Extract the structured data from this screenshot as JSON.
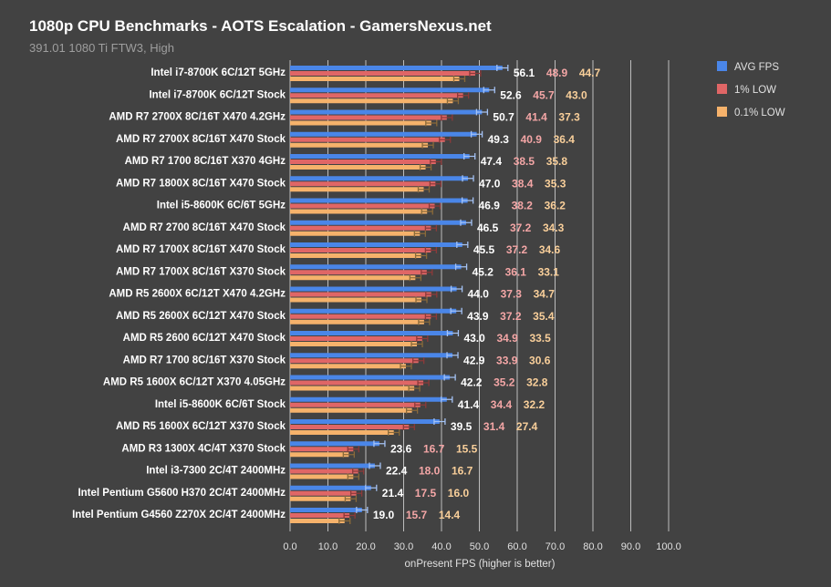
{
  "chart_data": {
    "type": "bar",
    "orientation": "horizontal",
    "title": "1080p CPU Benchmarks - AOTS Escalation - GamersNexus.net",
    "subtitle": "391.01 1080 Ti FTW3, High",
    "xlabel": "onPresent FPS (higher is better)",
    "xlim": [
      0,
      100
    ],
    "xticks": [
      "0.0",
      "10.0",
      "20.0",
      "30.0",
      "40.0",
      "50.0",
      "60.0",
      "70.0",
      "80.0",
      "90.0",
      "100.0"
    ],
    "grid": true,
    "legend_position": "top-right",
    "categories": [
      "Intel i7-8700K 6C/12T 5GHz",
      "Intel i7-8700K 6C/12T Stock",
      "AMD R7 2700X 8C/16T X470 4.2GHz",
      "AMD R7 2700X 8C/16T X470 Stock",
      "AMD R7 1700 8C/16T X370 4GHz",
      "AMD R7 1800X 8C/16T X470 Stock",
      "Intel i5-8600K 6C/6T 5GHz",
      "AMD R7 2700 8C/16T X470 Stock",
      "AMD R7 1700X 8C/16T X470 Stock",
      "AMD R7 1700X 8C/16T X370 Stock",
      "AMD R5 2600X 6C/12T X470 4.2GHz",
      "AMD R5 2600X 6C/12T X470 Stock",
      "AMD R5 2600 6C/12T X470 Stock",
      "AMD R7 1700 8C/16T X370 Stock",
      "AMD R5 1600X 6C/12T X370 4.05GHz",
      "Intel i5-8600K 6C/6T Stock",
      "AMD R5 1600X 6C/12T X370 Stock",
      "AMD R3 1300X 4C/4T X370 Stock",
      "Intel i3-7300 2C/4T 2400MHz",
      "Intel Pentium G5600 H370 2C/4T 2400MHz",
      "Intel Pentium G4560 Z270X 2C/4T 2400MHz"
    ],
    "series": [
      {
        "name": "AVG FPS",
        "color": "#4a86e8",
        "values": [
          56.1,
          52.6,
          50.7,
          49.3,
          47.4,
          47.0,
          46.9,
          46.5,
          45.5,
          45.2,
          44.0,
          43.9,
          43.0,
          42.9,
          42.2,
          41.4,
          39.5,
          23.6,
          22.4,
          21.4,
          19.0
        ]
      },
      {
        "name": "1% LOW",
        "color": "#e06666",
        "values": [
          48.9,
          45.7,
          41.4,
          40.9,
          38.5,
          38.4,
          38.2,
          37.2,
          37.2,
          36.1,
          37.3,
          37.2,
          34.9,
          33.9,
          35.2,
          34.4,
          31.4,
          16.7,
          18.0,
          17.5,
          15.7
        ]
      },
      {
        "name": "0.1% LOW",
        "color": "#f6b26b",
        "values": [
          44.7,
          43.0,
          37.3,
          36.4,
          35.8,
          35.3,
          36.2,
          34.3,
          34.6,
          33.1,
          34.7,
          35.4,
          33.5,
          30.6,
          32.8,
          32.2,
          27.4,
          15.5,
          16.7,
          16.0,
          14.4
        ]
      }
    ]
  }
}
